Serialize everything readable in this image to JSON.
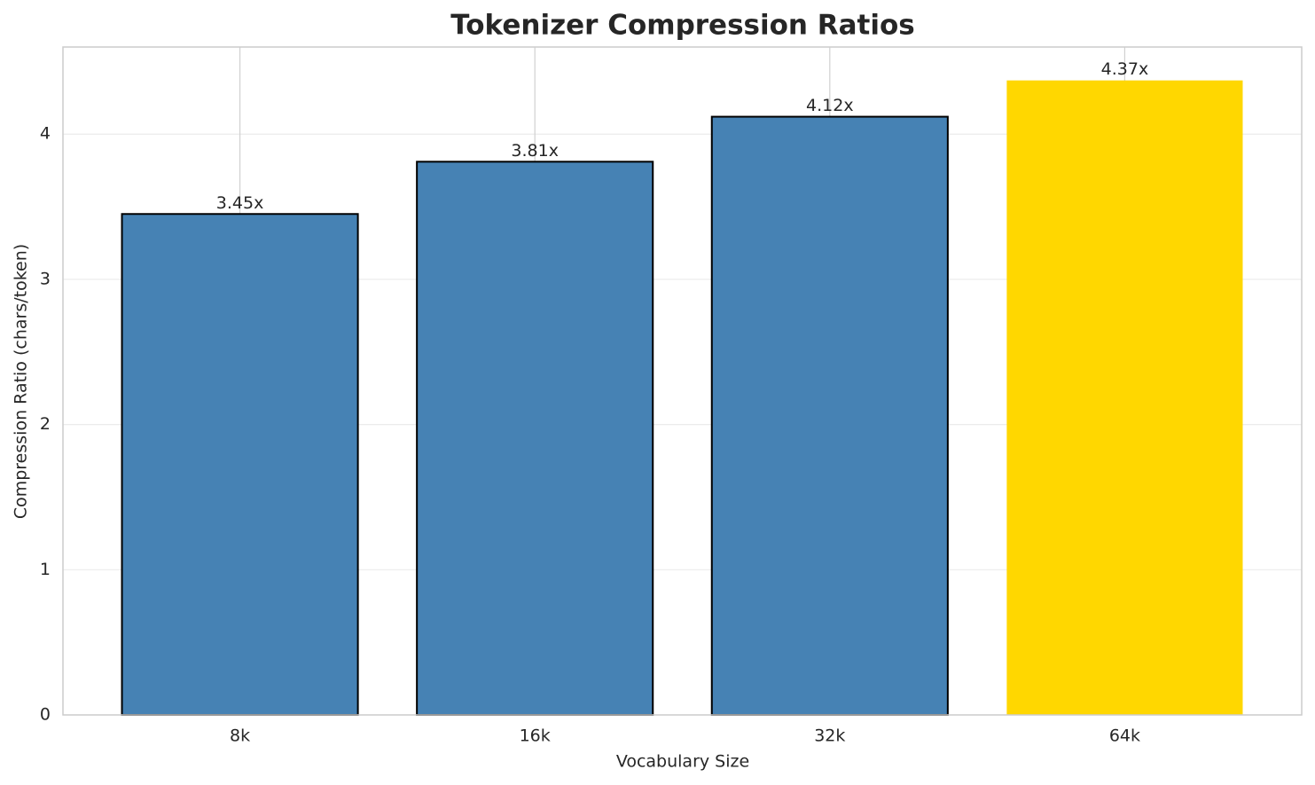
{
  "chart_data": {
    "type": "bar",
    "title": "Tokenizer Compression Ratios",
    "xlabel": "Vocabulary Size",
    "ylabel": "Compression Ratio (chars/token)",
    "categories": [
      "8k",
      "16k",
      "32k",
      "64k"
    ],
    "values": [
      3.45,
      3.81,
      4.12,
      4.37
    ],
    "value_labels": [
      "3.45x",
      "3.81x",
      "4.12x",
      "4.37x"
    ],
    "colors": [
      "#4682b4",
      "#4682b4",
      "#4682b4",
      "#ffd700"
    ],
    "edgecolors": [
      "#000000",
      "#000000",
      "#000000",
      "none"
    ],
    "ylim": [
      0,
      4.6
    ],
    "yticks": [
      0,
      1,
      2,
      3,
      4
    ],
    "grid": true
  }
}
